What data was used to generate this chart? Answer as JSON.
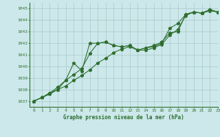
{
  "title": "Graphe pression niveau de la mer (hPa)",
  "background_color": "#cce8ea",
  "grid_color": "#a0c0c0",
  "line_color": "#2d6e2d",
  "xlim": [
    -0.5,
    23
  ],
  "ylim": [
    1036.5,
    1045.5
  ],
  "yticks": [
    1037,
    1038,
    1039,
    1040,
    1041,
    1042,
    1043,
    1044,
    1045
  ],
  "xticks": [
    0,
    1,
    2,
    3,
    4,
    5,
    6,
    7,
    8,
    9,
    10,
    11,
    12,
    13,
    14,
    15,
    16,
    17,
    18,
    19,
    20,
    21,
    22,
    23
  ],
  "series": [
    [
      1037.0,
      1037.3,
      1037.6,
      1038.0,
      1038.3,
      1038.8,
      1039.2,
      1039.7,
      1040.3,
      1040.7,
      1041.2,
      1041.5,
      1041.7,
      1041.4,
      1041.4,
      1041.6,
      1041.9,
      1042.7,
      1043.2,
      1044.4,
      1044.7,
      1044.6,
      1044.8,
      1044.7
    ],
    [
      1037.0,
      1037.3,
      1037.7,
      1038.0,
      1038.8,
      1039.3,
      1039.8,
      1041.1,
      1042.0,
      1042.1,
      1041.8,
      1041.7,
      1041.8,
      1041.4,
      1041.6,
      1041.8,
      1042.1,
      1042.9,
      1043.0,
      1044.5,
      1044.7,
      1044.6,
      1044.9,
      1044.7
    ],
    [
      1037.0,
      1037.3,
      1037.7,
      1038.2,
      1038.8,
      1040.3,
      1039.6,
      1042.0,
      1042.0,
      1042.1,
      1041.8,
      1041.7,
      1041.8,
      1041.4,
      1041.6,
      1041.7,
      1042.0,
      1043.3,
      1043.7,
      1044.5,
      1044.7,
      1044.6,
      1044.9,
      1044.7
    ]
  ]
}
